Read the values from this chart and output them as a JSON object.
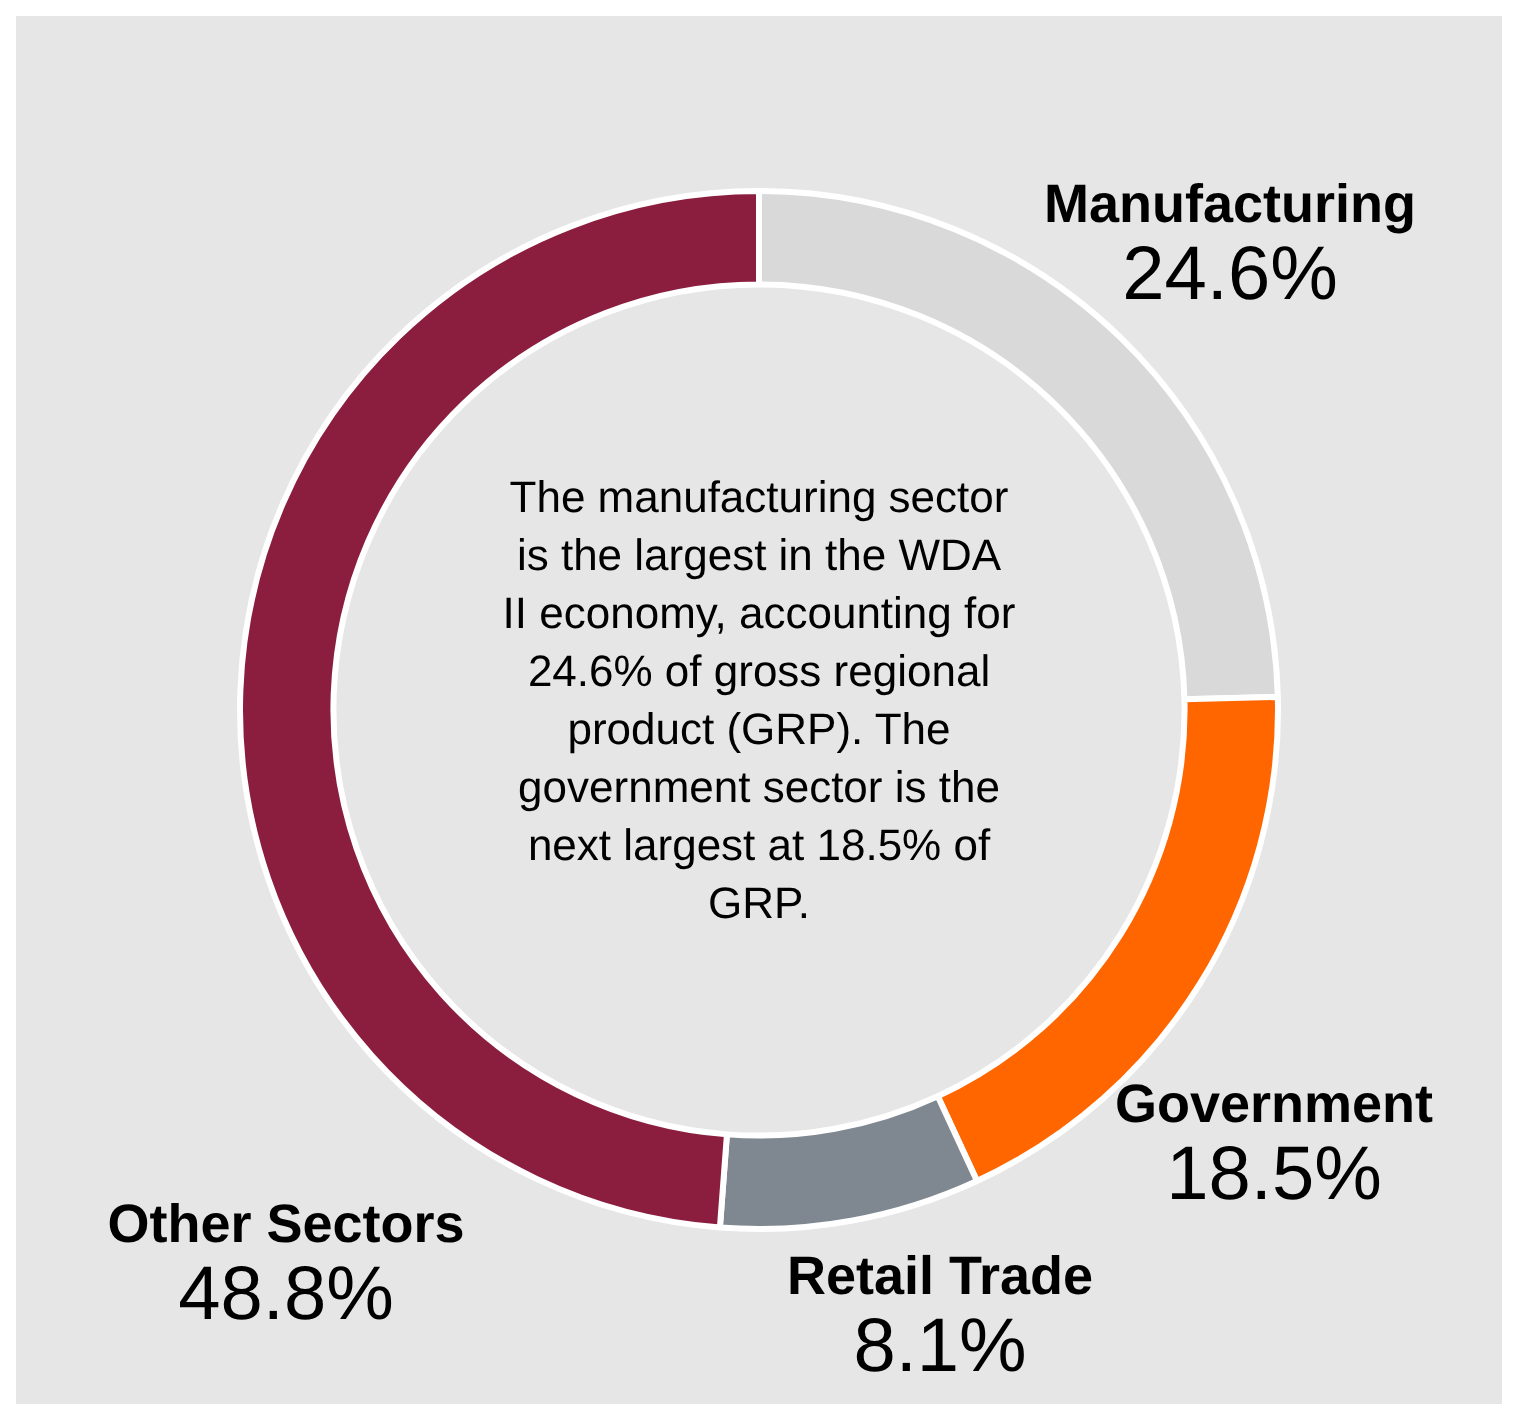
{
  "chart_data": {
    "type": "donut",
    "categories": [
      "Manufacturing",
      "Government",
      "Retail Trade",
      "Other Sectors"
    ],
    "values": [
      24.6,
      18.5,
      8.1,
      48.8
    ],
    "colors": [
      "#d9d9d9",
      "#ff6600",
      "#7f8891",
      "#8b1e3f"
    ],
    "value_labels": [
      "24.6%",
      "18.5%",
      "8.1%",
      "48.8%"
    ],
    "legend": false,
    "annotations": [
      "The manufacturing sector is the largest in the WDA II economy, accounting for 24.6% of gross regional product (GRP). The government sector is the next largest at 18.5% of GRP."
    ]
  }
}
